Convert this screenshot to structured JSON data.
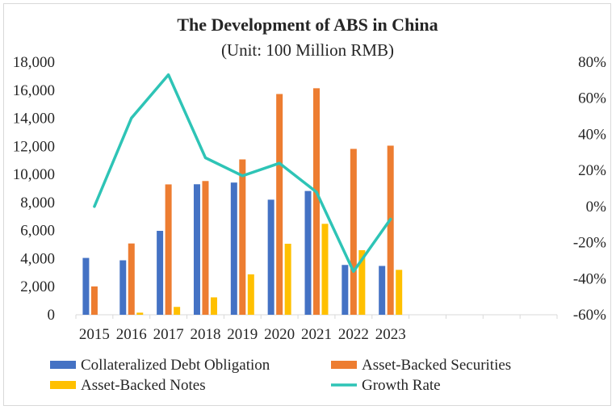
{
  "chart_data": {
    "type": "bar",
    "title": "The Development of ABS in China",
    "subtitle": "(Unit: 100 Million RMB)",
    "categories": [
      "2015",
      "2016",
      "2017",
      "2018",
      "2019",
      "2020",
      "2021",
      "2022",
      "2023"
    ],
    "empty_category_slots": 4,
    "series": [
      {
        "name": "Collateralized Debt Obligation",
        "axis": "left",
        "kind": "bar",
        "color": "#4472c4",
        "values": [
          4050,
          3880,
          5980,
          9300,
          9420,
          8200,
          8820,
          3550,
          3480
        ]
      },
      {
        "name": "Asset-Backed Securities",
        "axis": "left",
        "kind": "bar",
        "color": "#ed7d31",
        "values": [
          2020,
          5080,
          9290,
          9530,
          11070,
          15730,
          16140,
          11820,
          12050
        ]
      },
      {
        "name": "Asset-Backed Notes",
        "axis": "left",
        "kind": "bar",
        "color": "#ffc000",
        "values": [
          0,
          150,
          560,
          1240,
          2880,
          5060,
          6480,
          4600,
          3200
        ]
      },
      {
        "name": "Growth Rate",
        "axis": "right",
        "kind": "line",
        "color": "#2ec4b6",
        "values": [
          0,
          49,
          73,
          27,
          17,
          24,
          8,
          -36,
          -7
        ]
      }
    ],
    "y_left": {
      "min": 0,
      "max": 18000,
      "step": 2000,
      "tick_labels": [
        "0",
        "2,000",
        "4,000",
        "6,000",
        "8,000",
        "10,000",
        "12,000",
        "14,000",
        "16,000",
        "18,000"
      ]
    },
    "y_right": {
      "min": -60,
      "max": 80,
      "step": 20,
      "tick_labels": [
        "-60%",
        "-40%",
        "-20%",
        "0%",
        "20%",
        "40%",
        "60%",
        "80%"
      ]
    },
    "legend": {
      "position": "bottom",
      "items": [
        "Collateralized Debt Obligation",
        "Asset-Backed Securities",
        "Asset-Backed Notes",
        "Growth Rate"
      ]
    },
    "grid": false
  }
}
